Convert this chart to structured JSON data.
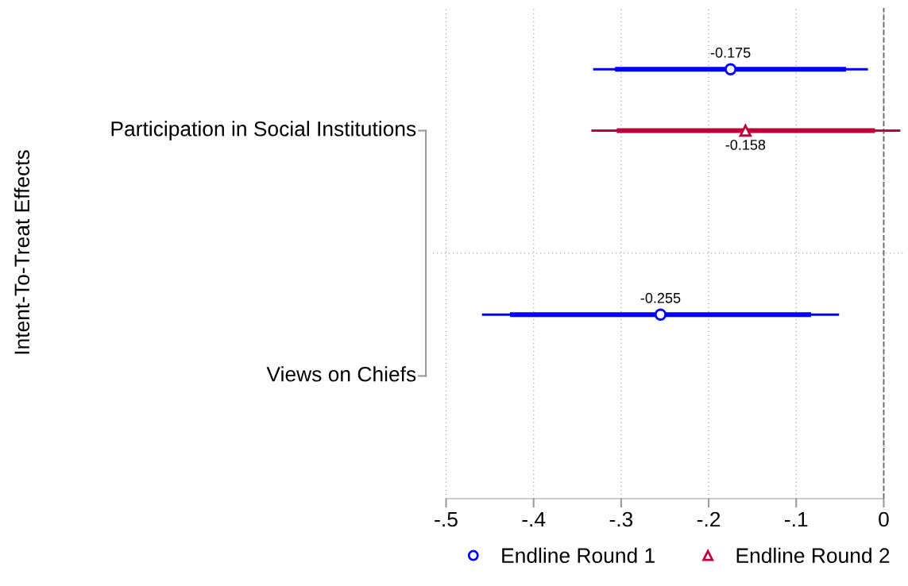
{
  "chart_data": {
    "type": "scatter",
    "orientation": "horizontal",
    "ylabel": "Intent-To-Treat Effects",
    "categories": [
      "Participation in Social Institutions",
      "Views on Chiefs"
    ],
    "series": [
      {
        "name": "Endline Round 1",
        "color": "#0000ff",
        "marker": "circle",
        "values": [
          -0.175,
          -0.255
        ],
        "errors": [
          [
            -0.332,
            -0.018
          ],
          [
            -0.459,
            -0.051
          ]
        ],
        "value_labels": [
          "-0.175",
          "-0.255"
        ]
      },
      {
        "type": "bar",
        "color": "#0000ff",
        "base": [
          -0.307,
          -0.427
        ],
        "values": [
          0.264,
          0.344
        ]
      },
      {
        "name": "Endline Round 2",
        "color": "#c0003c",
        "marker": "triangle",
        "values": [
          -0.158,
          null
        ],
        "errors": [
          [
            -0.334,
            0.019
          ],
          null
        ],
        "value_labels": [
          "-0.158",
          null
        ]
      },
      {
        "type": "bar",
        "color": "#c0003c",
        "base": [
          -0.305,
          null
        ],
        "values": [
          0.295,
          null
        ]
      }
    ],
    "xlim": [
      -0.515,
      0.025
    ],
    "xticks": [
      {
        "value": -0.5,
        "label": "-.5"
      },
      {
        "value": -0.4,
        "label": "-.4"
      },
      {
        "value": -0.3,
        "label": "-.3"
      },
      {
        "value": -0.2,
        "label": "-.2"
      },
      {
        "value": -0.1,
        "label": "-.1"
      },
      0
    ],
    "ref_lines": [
      {
        "axis": "x",
        "value": 0,
        "color": "#666666",
        "line_style": "dashed"
      }
    ],
    "grid": "x",
    "legend": "bottom"
  }
}
